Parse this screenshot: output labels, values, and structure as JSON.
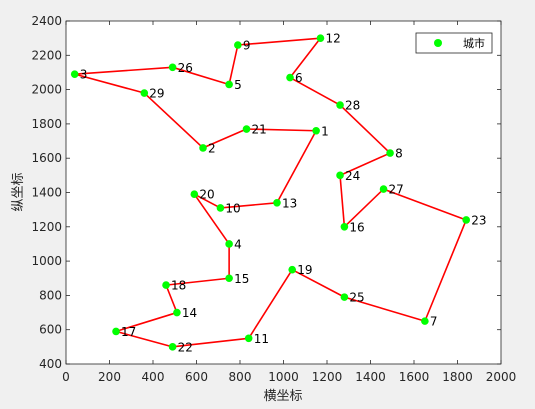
{
  "chart_data": {
    "type": "scatter",
    "title": "",
    "xlabel": "横坐标",
    "ylabel": "纵坐标",
    "xlim": [
      0,
      2000
    ],
    "ylim": [
      400,
      2400
    ],
    "xticks": [
      "0",
      "200",
      "400",
      "600",
      "800",
      "1000",
      "1200",
      "1400",
      "1600",
      "1800",
      "2000"
    ],
    "yticks": [
      "400",
      "600",
      "800",
      "1000",
      "1200",
      "1400",
      "1600",
      "1800",
      "2000",
      "2200",
      "2400"
    ],
    "grid": false,
    "legend": {
      "placement": "top-right",
      "entries": [
        "城市"
      ]
    },
    "series": [
      {
        "name": "城市",
        "marker_color": "#00ff00",
        "line_color": "#ff0000",
        "points": [
          {
            "id": "1",
            "x": 1150,
            "y": 1760
          },
          {
            "id": "2",
            "x": 630,
            "y": 1660
          },
          {
            "id": "3",
            "x": 40,
            "y": 2090
          },
          {
            "id": "4",
            "x": 750,
            "y": 1100
          },
          {
            "id": "5",
            "x": 750,
            "y": 2030
          },
          {
            "id": "6",
            "x": 1030,
            "y": 2070
          },
          {
            "id": "7",
            "x": 1650,
            "y": 650
          },
          {
            "id": "8",
            "x": 1490,
            "y": 1630
          },
          {
            "id": "9",
            "x": 790,
            "y": 2260
          },
          {
            "id": "10",
            "x": 710,
            "y": 1310
          },
          {
            "id": "11",
            "x": 840,
            "y": 550
          },
          {
            "id": "12",
            "x": 1170,
            "y": 2300
          },
          {
            "id": "13",
            "x": 970,
            "y": 1340
          },
          {
            "id": "14",
            "x": 510,
            "y": 700
          },
          {
            "id": "15",
            "x": 750,
            "y": 900
          },
          {
            "id": "16",
            "x": 1280,
            "y": 1200
          },
          {
            "id": "17",
            "x": 230,
            "y": 590
          },
          {
            "id": "18",
            "x": 460,
            "y": 860
          },
          {
            "id": "19",
            "x": 1040,
            "y": 950
          },
          {
            "id": "20",
            "x": 590,
            "y": 1390
          },
          {
            "id": "21",
            "x": 830,
            "y": 1770
          },
          {
            "id": "22",
            "x": 490,
            "y": 500
          },
          {
            "id": "23",
            "x": 1840,
            "y": 1240
          },
          {
            "id": "24",
            "x": 1260,
            "y": 1500
          },
          {
            "id": "25",
            "x": 1280,
            "y": 790
          },
          {
            "id": "26",
            "x": 490,
            "y": 2130
          },
          {
            "id": "27",
            "x": 1460,
            "y": 1420
          },
          {
            "id": "28",
            "x": 1260,
            "y": 1910
          },
          {
            "id": "29",
            "x": 360,
            "y": 1980
          }
        ],
        "route": [
          "3",
          "26",
          "5",
          "9",
          "12",
          "6",
          "28",
          "8",
          "24",
          "16",
          "27",
          "23",
          "7",
          "25",
          "19",
          "11",
          "22",
          "17",
          "14",
          "18",
          "15",
          "4",
          "20",
          "10",
          "13",
          "1",
          "21",
          "2",
          "29",
          "3"
        ]
      }
    ]
  }
}
